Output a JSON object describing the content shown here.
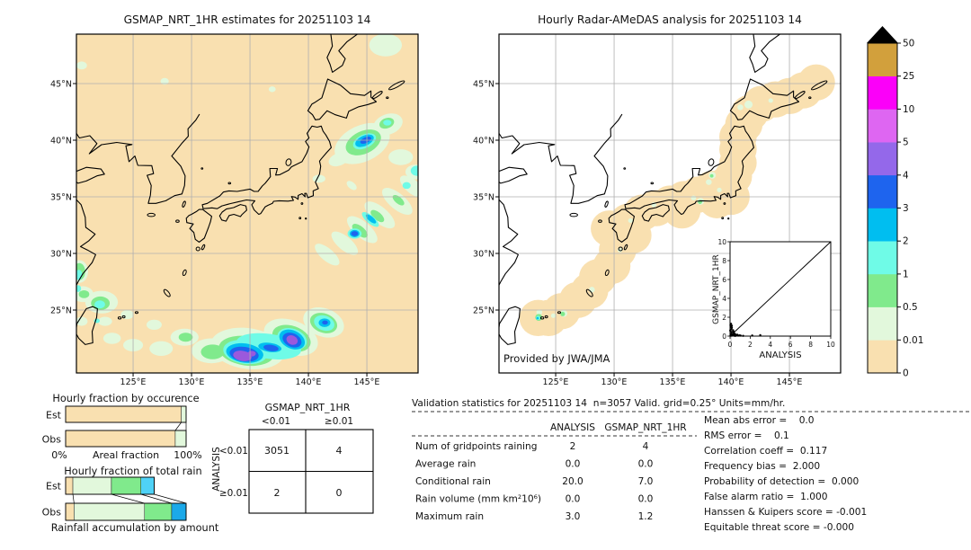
{
  "ui": {
    "maps": {
      "left_title": "GSMAP_NRT_1HR estimates for 20251103 14",
      "right_title": "Hourly Radar-AMeDAS analysis for 20251103 14",
      "lat_ticks": [
        "45°N",
        "40°N",
        "35°N",
        "30°N",
        "25°N"
      ],
      "lon_ticks": [
        "125°E",
        "130°E",
        "135°E",
        "140°E",
        "145°E"
      ],
      "credit": "Provided by JWA/JMA"
    },
    "colorbar": {
      "ticks": [
        "50",
        "25",
        "10",
        "5",
        "4",
        "3",
        "2",
        "1",
        "0.5",
        "0.01",
        "0"
      ]
    },
    "inset": {
      "xlabel": "ANALYSIS",
      "ylabel": "GSMAP_NRT_1HR",
      "x_ticks": [
        "0",
        "2",
        "4",
        "6",
        "8",
        "10"
      ],
      "y_ticks": [
        "0",
        "2",
        "4",
        "6",
        "8",
        "10"
      ]
    },
    "occurrence": {
      "title": "Hourly fraction by occurence",
      "est": "Est",
      "obs": "Obs",
      "x_left": "0%",
      "x_center": "Areal fraction",
      "x_right": "100%"
    },
    "total_rain": {
      "title": "Hourly fraction of total rain",
      "est": "Est",
      "obs": "Obs",
      "footer": "Rainfall accumulation by amount"
    },
    "contingency": {
      "col_group": "GSMAP_NRT_1HR",
      "row_group": "ANALYSIS",
      "col_labels": [
        "<0.01",
        "≥0.01"
      ],
      "row_labels": [
        "<0.01",
        "≥0.01"
      ],
      "cells": [
        [
          "3051",
          "4"
        ],
        [
          "2",
          "0"
        ]
      ]
    },
    "stats": {
      "header": "Validation statistics for 20251103 14  n=3057 Valid. grid=0.25° Units=mm/hr.",
      "col_analysis": "ANALYSIS",
      "col_gsmap": "GSMAP_NRT_1HR",
      "rows": [
        {
          "label": "Num of gridpoints raining",
          "analysis": "2",
          "gsmap": "4"
        },
        {
          "label": "Average rain",
          "analysis": "0.0",
          "gsmap": "0.0"
        },
        {
          "label": "Conditional rain",
          "analysis": "20.0",
          "gsmap": "7.0"
        },
        {
          "label": "Rain volume (mm km²10⁶)",
          "analysis": "0.0",
          "gsmap": "0.0"
        },
        {
          "label": "Maximum rain",
          "analysis": "3.0",
          "gsmap": "1.2"
        }
      ],
      "scores": [
        "Mean abs error =    0.0",
        "RMS error =    0.1",
        "Correlation coeff =  0.117",
        "Frequency bias =  2.000",
        "Probability of detection =  0.000",
        "False alarm ratio =  1.000",
        "Hanssen & Kuipers score = -0.001",
        "Equitable threat score = -0.000"
      ]
    }
  },
  "chart_data": [
    {
      "name": "gsmap_precipitation_map",
      "type": "heatmap",
      "title": "GSMAP_NRT_1HR estimates for 20251103 14",
      "lon_range": [
        120,
        150
      ],
      "lat_range": [
        20,
        50
      ],
      "units": "mm/hr",
      "levels": [
        0,
        0.01,
        0.5,
        1,
        2,
        3,
        4,
        5,
        10,
        25,
        50
      ],
      "level_colors": [
        "#F9E0B0",
        "#E2F8DC",
        "#80EA8C",
        "#6FFBE7",
        "#00BEF0",
        "#1E64EE",
        "#9468EA",
        "#DE66F2",
        "#FB00F9",
        "#D2A03C"
      ],
      "note": "Rain cells: purple/blue cores near 134.5E 21N and 138.6E 22.3N, blue cell 144E 31.7N, cyan/blue cell 144.8E 39.9N, diagonal light band 140-149E 29-36N, patches near Taiwan"
    },
    {
      "name": "radar_amedas_map",
      "type": "heatmap",
      "title": "Hourly Radar-AMeDAS analysis for 20251103 14",
      "lon_range": [
        120,
        150
      ],
      "lat_range": [
        20,
        50
      ],
      "units": "mm/hr",
      "note": "White outside radar range; tan coverage band along Japan archipelago and SW islands; light-rain speckles over central Japan; small heavier cell near 123.5E 24.2N",
      "credit": "Provided by JWA/JMA"
    },
    {
      "name": "hourly_fraction_by_occurrence",
      "type": "bar",
      "stacked": true,
      "orientation": "horizontal",
      "title": "Hourly fraction by occurence",
      "categories": [
        "Est",
        "Obs"
      ],
      "xlabel": "Areal fraction",
      "xlim_pct": [
        0,
        100
      ],
      "bins": [
        {
          "colors": [
            "#F9E0B0",
            "#F9E0B0"
          ],
          "values_pct": [
            96.0,
            91.0
          ]
        },
        {
          "colors": [
            "#E2F8DC",
            "#E2F8DC"
          ],
          "values_pct": [
            4.0,
            9.0
          ]
        }
      ]
    },
    {
      "name": "hourly_fraction_of_total_rain",
      "type": "bar",
      "stacked": true,
      "orientation": "horizontal",
      "title": "Hourly fraction of total rain",
      "footer": "Rainfall accumulation by amount",
      "categories": [
        "Est",
        "Obs"
      ],
      "bins": [
        {
          "colors": [
            "#F9E0B0",
            "#F9E0B0"
          ],
          "values_pct": [
            6.0,
            7.0
          ]
        },
        {
          "colors": [
            "#E2F8DC",
            "#E2F8DC"
          ],
          "values_pct": [
            32.0,
            58.5
          ]
        },
        {
          "colors": [
            "#80EA8C",
            "#80EA8C"
          ],
          "values_pct": [
            24.5,
            22.5
          ]
        },
        {
          "colors": [
            "#4FD2F7",
            "#1BA9E9"
          ],
          "values_pct": [
            11.0,
            12.0
          ]
        }
      ]
    },
    {
      "name": "inset_scatter",
      "type": "scatter",
      "xlabel": "ANALYSIS",
      "ylabel": "GSMAP_NRT_1HR",
      "xlim": [
        0,
        10
      ],
      "ylim": [
        0,
        10
      ],
      "one_to_one_line": true,
      "points": [
        [
          0.05,
          0.08
        ],
        [
          0.1,
          0.25
        ],
        [
          0.05,
          0.5
        ],
        [
          0.12,
          0.72
        ],
        [
          0.08,
          0.95
        ],
        [
          0.18,
          1.1
        ],
        [
          0.1,
          1.3
        ],
        [
          0.3,
          0.2
        ],
        [
          0.42,
          0.12
        ],
        [
          0.55,
          0.06
        ],
        [
          0.65,
          0.1
        ],
        [
          0.85,
          0.05
        ],
        [
          0.2,
          0.42
        ],
        [
          0.3,
          0.62
        ],
        [
          0.15,
          0.05
        ],
        [
          0.25,
          0.12
        ],
        [
          2.2,
          0.06
        ],
        [
          3.0,
          0.1
        ],
        [
          0.06,
          0.04
        ],
        [
          0.4,
          0.3
        ],
        [
          0.5,
          0.22
        ],
        [
          0.72,
          0.15
        ],
        [
          0.95,
          0.08
        ],
        [
          1.05,
          0.05
        ],
        [
          0.35,
          0.48
        ],
        [
          0.02,
          0.6
        ],
        [
          0.04,
          1.15
        ],
        [
          0.5,
          0.02
        ],
        [
          1.3,
          0.03
        ],
        [
          0.18,
          0.88
        ]
      ]
    },
    {
      "name": "contingency_table",
      "type": "table",
      "col_group": "GSMAP_NRT_1HR",
      "row_group": "ANALYSIS",
      "col_labels": [
        "<0.01",
        "≥0.01"
      ],
      "row_labels": [
        "<0.01",
        "≥0.01"
      ],
      "values": [
        [
          3051,
          4
        ],
        [
          2,
          0
        ]
      ]
    },
    {
      "name": "validation_stats",
      "type": "table",
      "title": "Validation statistics for 20251103 14  n=3057 Valid. grid=0.25° Units=mm/hr.",
      "columns": [
        "ANALYSIS",
        "GSMAP_NRT_1HR"
      ],
      "rows": [
        [
          "Num of gridpoints raining",
          2,
          4
        ],
        [
          "Average rain",
          0.0,
          0.0
        ],
        [
          "Conditional rain",
          20.0,
          7.0
        ],
        [
          "Rain volume (mm km²10⁶)",
          0.0,
          0.0
        ],
        [
          "Maximum rain",
          3.0,
          1.2
        ]
      ],
      "scores": {
        "Mean abs error": 0.0,
        "RMS error": 0.1,
        "Correlation coeff": 0.117,
        "Frequency bias": 2.0,
        "Probability of detection": 0.0,
        "False alarm ratio": 1.0,
        "Hanssen & Kuipers score": -0.001,
        "Equitable threat score": -0.0
      }
    }
  ]
}
